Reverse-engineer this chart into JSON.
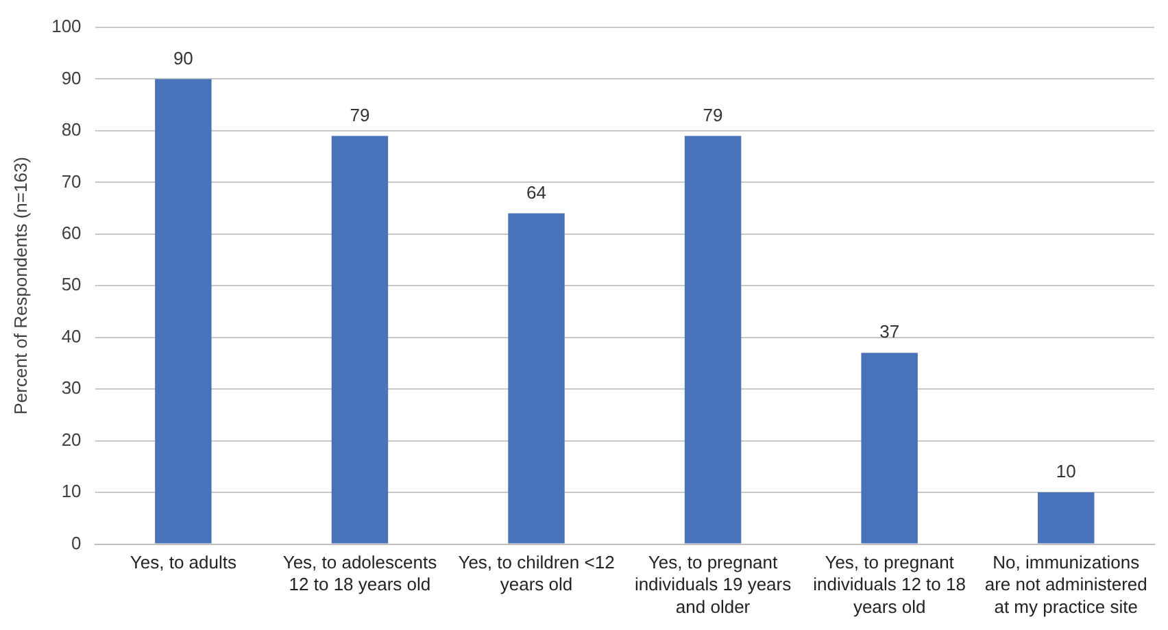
{
  "chart_data": {
    "type": "bar",
    "ylabel": "Percent of Respondents (n=163)",
    "categories": [
      "Yes, to adults",
      "Yes, to adolescents 12 to 18 years old",
      "Yes, to children <12 years old",
      "Yes, to pregnant individuals 19 years and older",
      "Yes, to pregnant individuals 12 to 18 years old",
      "No, immunizations are not administered at my practice site"
    ],
    "values": [
      90,
      79,
      64,
      79,
      37,
      10
    ],
    "color": "#4a72b8",
    "ylim": [
      0,
      100
    ],
    "yticks": [
      0,
      10,
      20,
      30,
      40,
      50,
      60,
      70,
      80,
      90,
      100
    ],
    "grid": "y",
    "legend": false,
    "data_labels": true
  }
}
